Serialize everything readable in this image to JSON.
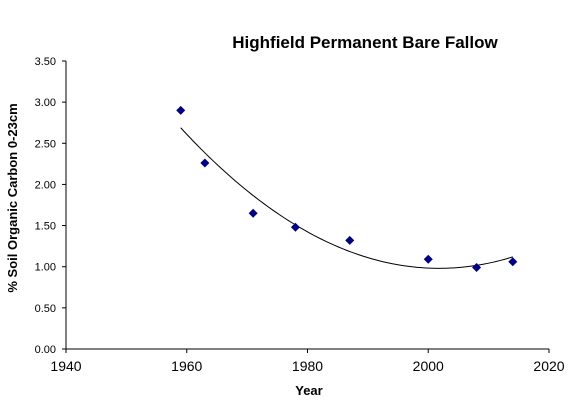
{
  "chart_data": {
    "type": "scatter",
    "title": "Highfield Permanent Bare Fallow",
    "xlabel": "Year",
    "ylabel": "% Soil Organic Carbon  0-23cm",
    "xlim": [
      1940,
      2020
    ],
    "ylim": [
      0,
      3.5
    ],
    "xticks": [
      1940,
      1960,
      1980,
      2000,
      2020
    ],
    "yticks": [
      0,
      0.5,
      1.0,
      1.5,
      2.0,
      2.5,
      3.0,
      3.5
    ],
    "ytick_labels": [
      "0.00",
      "0.50",
      "1.00",
      "1.50",
      "2.00",
      "2.50",
      "3.00",
      "3.50"
    ],
    "xtick_labels": [
      "1940",
      "1960",
      "1980",
      "2000",
      "2020"
    ],
    "grid": false,
    "legend": "none",
    "marker": "diamond",
    "marker_color": "#000080",
    "trendline": {
      "type": "polynomial",
      "order": 2,
      "color": "#000000",
      "x_range": [
        1959,
        2014
      ]
    },
    "points": [
      {
        "x": 1959,
        "y": 2.9
      },
      {
        "x": 1963,
        "y": 2.26
      },
      {
        "x": 1971,
        "y": 1.65
      },
      {
        "x": 1978,
        "y": 1.48
      },
      {
        "x": 1987,
        "y": 1.32
      },
      {
        "x": 2000,
        "y": 1.09
      },
      {
        "x": 2008,
        "y": 0.99
      },
      {
        "x": 2014,
        "y": 1.06
      }
    ]
  }
}
